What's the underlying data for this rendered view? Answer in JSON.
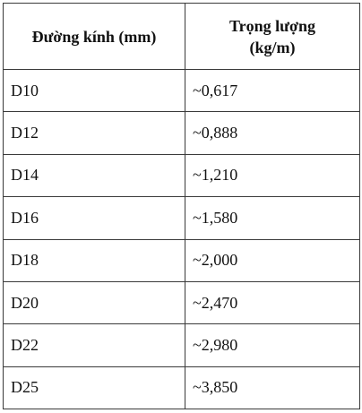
{
  "table": {
    "headers": {
      "diameter": "Đường kính (mm)",
      "weight_line1": "Trọng lượng",
      "weight_line2": "(kg/m)"
    },
    "rows": [
      {
        "diameter": "D10",
        "weight": "~0,617"
      },
      {
        "diameter": "D12",
        "weight": "~0,888"
      },
      {
        "diameter": "D14",
        "weight": "~1,210"
      },
      {
        "diameter": "D16",
        "weight": "~1,580"
      },
      {
        "diameter": "D18",
        "weight": "~2,000"
      },
      {
        "diameter": "D20",
        "weight": "~2,470"
      },
      {
        "diameter": "D22",
        "weight": "~2,980"
      },
      {
        "diameter": "D25",
        "weight": "~3,850"
      }
    ]
  }
}
